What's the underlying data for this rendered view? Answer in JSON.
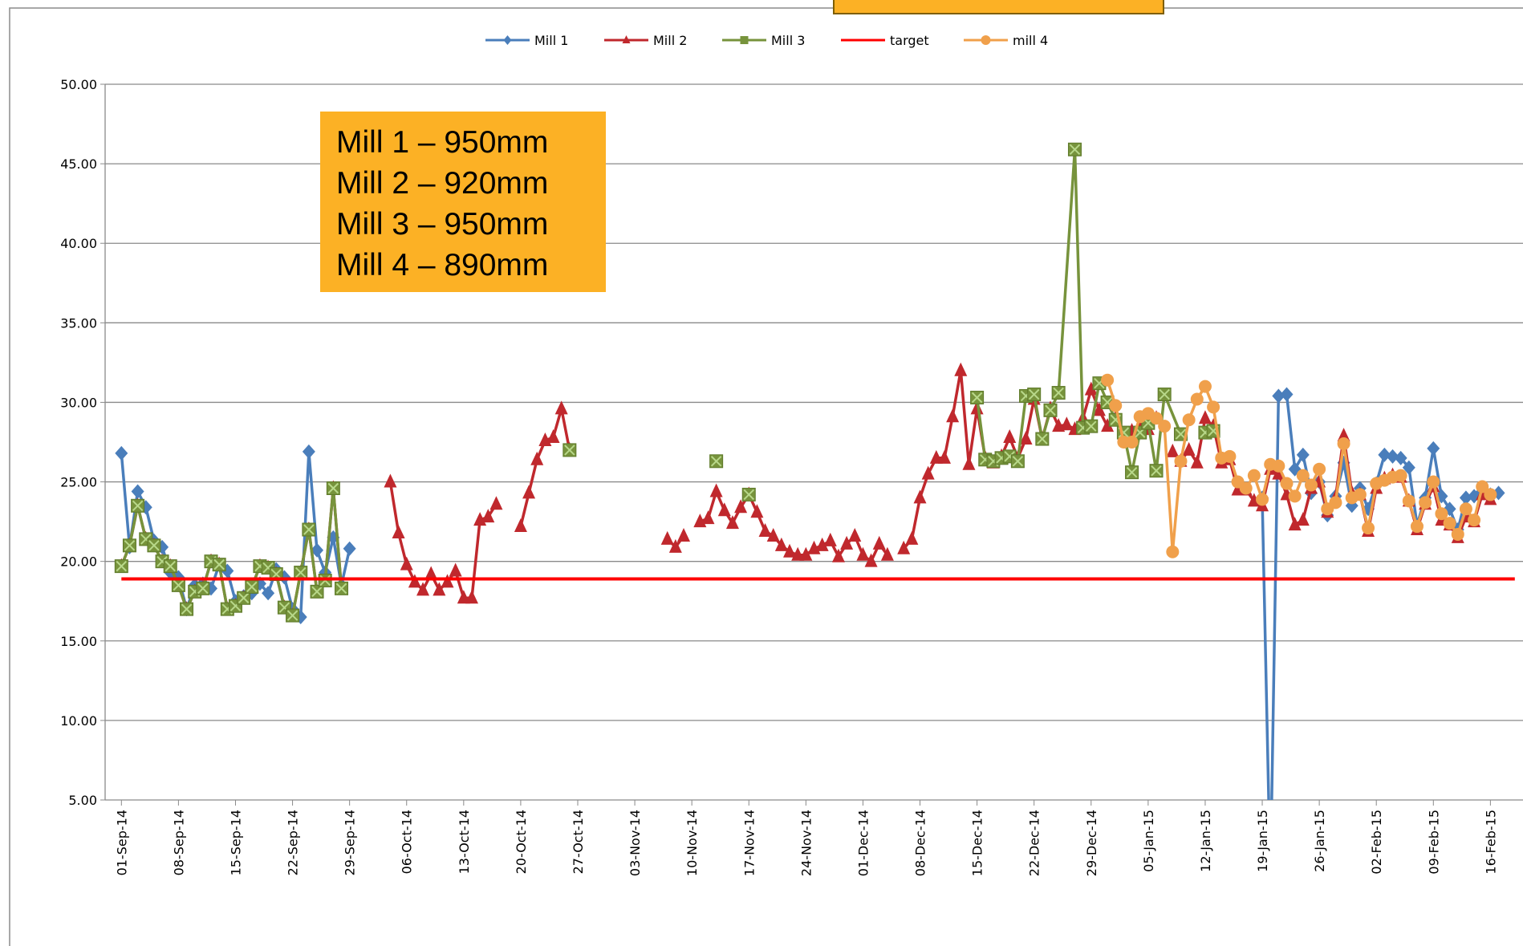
{
  "chart_data": {
    "type": "line",
    "annotation": [
      "Mill 1 – 950mm",
      "Mill 2 – 920mm",
      "Mill 3 – 950mm",
      "Mill 4 – 890mm"
    ],
    "xlim": [
      "2014-08-30",
      "2015-02-20"
    ],
    "xticks": [
      {
        "value": "2014-09-01",
        "label": "01-Sep-14"
      },
      {
        "value": "2014-09-08",
        "label": "08-Sep-14"
      },
      {
        "value": "2014-09-15",
        "label": "15-Sep-14"
      },
      {
        "value": "2014-09-22",
        "label": "22-Sep-14"
      },
      {
        "value": "2014-09-29",
        "label": "29-Sep-14"
      },
      {
        "value": "2014-10-06",
        "label": "06-Oct-14"
      },
      {
        "value": "2014-10-13",
        "label": "13-Oct-14"
      },
      {
        "value": "2014-10-20",
        "label": "20-Oct-14"
      },
      {
        "value": "2014-10-27",
        "label": "27-Oct-14"
      },
      {
        "value": "2014-11-03",
        "label": "03-Nov-14"
      },
      {
        "value": "2014-11-10",
        "label": "10-Nov-14"
      },
      {
        "value": "2014-11-17",
        "label": "17-Nov-14"
      },
      {
        "value": "2014-11-24",
        "label": "24-Nov-14"
      },
      {
        "value": "2014-12-01",
        "label": "01-Dec-14"
      },
      {
        "value": "2014-12-08",
        "label": "08-Dec-14"
      },
      {
        "value": "2014-12-15",
        "label": "15-Dec-14"
      },
      {
        "value": "2014-12-22",
        "label": "22-Dec-14"
      },
      {
        "value": "2014-12-29",
        "label": "29-Dec-14"
      },
      {
        "value": "2015-01-05",
        "label": "05-Jan-15"
      },
      {
        "value": "2015-01-12",
        "label": "12-Jan-15"
      },
      {
        "value": "2015-01-19",
        "label": "19-Jan-15"
      },
      {
        "value": "2015-01-26",
        "label": "26-Jan-15"
      },
      {
        "value": "2015-02-02",
        "label": "02-Feb-15"
      },
      {
        "value": "2015-02-09",
        "label": "09-Feb-15"
      },
      {
        "value": "2015-02-16",
        "label": "16-Feb-15"
      }
    ],
    "ylim": [
      5,
      50
    ],
    "yticks": [
      {
        "value": 5,
        "label": "5.00"
      },
      {
        "value": 10,
        "label": "10.00"
      },
      {
        "value": 15,
        "label": "15.00"
      },
      {
        "value": 20,
        "label": "20.00"
      },
      {
        "value": 25,
        "label": "25.00"
      },
      {
        "value": 30,
        "label": "30.00"
      },
      {
        "value": 35,
        "label": "35.00"
      },
      {
        "value": 40,
        "label": "40.00"
      },
      {
        "value": 45,
        "label": "45.00"
      },
      {
        "value": 50,
        "label": "50.00"
      }
    ],
    "grid": true,
    "legend": "top",
    "series": [
      {
        "name": "Mill 1",
        "color": "#4a7ebb",
        "marker": "diamond",
        "x": [
          "2014-09-01",
          "2014-09-02",
          "2014-09-03",
          "2014-09-04",
          "2014-09-05",
          "2014-09-06",
          "2014-09-07",
          "2014-09-08",
          "2014-09-09",
          "2014-09-10",
          "2014-09-11",
          "2014-09-12",
          "2014-09-13",
          "2014-09-14",
          "2014-09-15",
          "2014-09-16",
          "2014-09-17",
          "2014-09-18",
          "2014-09-19",
          "2014-09-20",
          "2014-09-21",
          "2014-09-22",
          "2014-09-23",
          "2014-09-24",
          "2014-09-25",
          "2014-09-26",
          "2014-09-27",
          "2014-09-28",
          "2014-09-29",
          "2014-10-01",
          "2015-01-19",
          "2015-01-20",
          "2015-01-21",
          "2015-01-22",
          "2015-01-23",
          "2015-01-24",
          "2015-01-25",
          "2015-01-26",
          "2015-01-27",
          "2015-01-28",
          "2015-01-29",
          "2015-01-30",
          "2015-01-31",
          "2015-02-01",
          "2015-02-02",
          "2015-02-03",
          "2015-02-04",
          "2015-02-05",
          "2015-02-06",
          "2015-02-07",
          "2015-02-08",
          "2015-02-09",
          "2015-02-10",
          "2015-02-11",
          "2015-02-12",
          "2015-02-13",
          "2015-02-14",
          "2015-02-15",
          "2015-02-16",
          "2015-02-17"
        ],
        "values": [
          26.8,
          20.9,
          24.4,
          23.4,
          21.3,
          20.9,
          19.3,
          19.0,
          17.0,
          18.5,
          18.6,
          18.3,
          19.8,
          19.4,
          17.5,
          17.8,
          18.0,
          18.6,
          18.0,
          19.5,
          19.0,
          17.0,
          16.5,
          26.9,
          20.7,
          19.3,
          21.5,
          18.5,
          20.8,
          null,
          24.0,
          0,
          30.4,
          30.5,
          25.8,
          26.7,
          24.3,
          25.0,
          22.9,
          24.1,
          26.2,
          23.5,
          24.6,
          23.3,
          24.9,
          26.7,
          26.6,
          26.5,
          25.9,
          22.3,
          24.0,
          27.1,
          24.1,
          23.3,
          22.0,
          24.0,
          24.1,
          24.4,
          24.2,
          24.3
        ]
      },
      {
        "name": "Mill 2",
        "color": "#c0282d",
        "marker": "triangle",
        "x": [
          "2014-09-01",
          "2014-09-02",
          "2014-09-03",
          "2014-09-04",
          "2014-09-05",
          "2014-09-06",
          "2014-09-07",
          "2014-09-08",
          "2014-09-09",
          "2014-09-10",
          "2014-09-11",
          "2014-09-12",
          "2014-09-13",
          "2014-09-14",
          "2014-09-15",
          "2014-09-16",
          "2014-09-17",
          "2014-09-18",
          "2014-09-19",
          "2014-09-20",
          "2014-09-21",
          "2014-09-22",
          "2014-09-23",
          "2014-09-24",
          "2014-09-25",
          "2014-09-26",
          "2014-09-27",
          "2014-09-28",
          "2014-10-01",
          "2014-10-04",
          "2014-10-05",
          "2014-10-06",
          "2014-10-07",
          "2014-10-08",
          "2014-10-09",
          "2014-10-10",
          "2014-10-11",
          "2014-10-12",
          "2014-10-13",
          "2014-10-14",
          "2014-10-15",
          "2014-10-16",
          "2014-10-17",
          "2014-10-18",
          "2014-10-20",
          "2014-10-21",
          "2014-10-22",
          "2014-10-23",
          "2014-10-24",
          "2014-10-25",
          "2014-10-26",
          "2014-10-30",
          "2014-11-07",
          "2014-11-08",
          "2014-11-09",
          "2014-11-10",
          "2014-11-11",
          "2014-11-12",
          "2014-11-13",
          "2014-11-14",
          "2014-11-15",
          "2014-11-16",
          "2014-11-17",
          "2014-11-18",
          "2014-11-19",
          "2014-11-20",
          "2014-11-21",
          "2014-11-22",
          "2014-11-23",
          "2014-11-24",
          "2014-11-25",
          "2014-11-26",
          "2014-11-27",
          "2014-11-28",
          "2014-11-29",
          "2014-11-30",
          "2014-12-01",
          "2014-12-02",
          "2014-12-03",
          "2014-12-04",
          "2014-12-05",
          "2014-12-06",
          "2014-12-07",
          "2014-12-08",
          "2014-12-09",
          "2014-12-10",
          "2014-12-11",
          "2014-12-12",
          "2014-12-13",
          "2014-12-14",
          "2014-12-15",
          "2014-12-16",
          "2014-12-17",
          "2014-12-18",
          "2014-12-19",
          "2014-12-20",
          "2014-12-21",
          "2014-12-22",
          "2014-12-23",
          "2014-12-24",
          "2014-12-25",
          "2014-12-26",
          "2014-12-27",
          "2014-12-28",
          "2014-12-29",
          "2014-12-30",
          "2014-12-31",
          "2015-01-01",
          "2015-01-02",
          "2015-01-03",
          "2015-01-04",
          "2015-01-05",
          "2015-01-06",
          "2015-01-07",
          "2015-01-08",
          "2015-01-09",
          "2015-01-10",
          "2015-01-11",
          "2015-01-12",
          "2015-01-13",
          "2015-01-14",
          "2015-01-15",
          "2015-01-16",
          "2015-01-17",
          "2015-01-18",
          "2015-01-19",
          "2015-01-20",
          "2015-01-21",
          "2015-01-22",
          "2015-01-23",
          "2015-01-24",
          "2015-01-25",
          "2015-01-26",
          "2015-01-27",
          "2015-01-28",
          "2015-01-29",
          "2015-01-30",
          "2015-01-31",
          "2015-02-01",
          "2015-02-02",
          "2015-02-03",
          "2015-02-04",
          "2015-02-05",
          "2015-02-06",
          "2015-02-07",
          "2015-02-08",
          "2015-02-09",
          "2015-02-10",
          "2015-02-11",
          "2015-02-12",
          "2015-02-13",
          "2015-02-14",
          "2015-02-15",
          "2015-02-16"
        ],
        "values": [
          19.7,
          21.0,
          23.5,
          21.4,
          21.0,
          20.0,
          19.7,
          18.5,
          17.0,
          18.1,
          18.3,
          20.0,
          19.8,
          17.0,
          17.2,
          17.7,
          18.4,
          19.7,
          19.6,
          19.2,
          17.1,
          16.6,
          19.3,
          22.0,
          18.1,
          18.8,
          24.6,
          18.3,
          null,
          25.0,
          21.8,
          19.8,
          18.7,
          18.2,
          19.2,
          18.2,
          18.7,
          19.4,
          17.7,
          17.7,
          22.6,
          22.8,
          23.6,
          null,
          22.2,
          24.3,
          26.4,
          27.6,
          27.8,
          29.6,
          27.0,
          null,
          21.4,
          20.9,
          21.6,
          null,
          22.5,
          22.7,
          24.4,
          23.2,
          22.4,
          23.4,
          24.2,
          23.1,
          21.9,
          21.6,
          21.0,
          20.6,
          20.4,
          20.4,
          20.8,
          21.0,
          21.3,
          20.3,
          21.1,
          21.6,
          20.4,
          20.0,
          21.1,
          20.4,
          null,
          20.8,
          21.4,
          24.0,
          25.5,
          26.5,
          26.5,
          29.1,
          32.0,
          26.1,
          29.6,
          26.5,
          26.2,
          26.6,
          27.8,
          26.5,
          27.7,
          30.2,
          27.7,
          29.6,
          28.5,
          28.6,
          28.3,
          29.0,
          30.8,
          29.5,
          28.5,
          29.0,
          27.8,
          28.2,
          28.5,
          28.3,
          29.0,
          null,
          26.9,
          26.3,
          27.0,
          26.2,
          29.0,
          28.5,
          26.2,
          26.4,
          24.5,
          24.5,
          23.8,
          23.5,
          25.8,
          25.5,
          24.2,
          22.3,
          22.6,
          24.6,
          25.0,
          23.1,
          24.0,
          27.9,
          24.3,
          24.2,
          21.9,
          24.6,
          25.2,
          25.4,
          25.3,
          23.8,
          22.0,
          23.6,
          24.7,
          22.6,
          22.3,
          21.5,
          22.8,
          22.5,
          24.2,
          23.9
        ]
      },
      {
        "name": "Mill 3",
        "color": "#77933c",
        "marker": "square",
        "x": [
          "2014-09-01",
          "2014-09-02",
          "2014-09-03",
          "2014-09-04",
          "2014-09-05",
          "2014-09-06",
          "2014-09-07",
          "2014-09-08",
          "2014-09-09",
          "2014-09-10",
          "2014-09-11",
          "2014-09-12",
          "2014-09-13",
          "2014-09-14",
          "2014-09-15",
          "2014-09-16",
          "2014-09-17",
          "2014-09-18",
          "2014-09-19",
          "2014-09-20",
          "2014-09-21",
          "2014-09-22",
          "2014-09-23",
          "2014-09-24",
          "2014-09-25",
          "2014-09-26",
          "2014-09-27",
          "2014-09-28",
          "2014-10-01",
          "2014-10-26",
          "2014-11-01",
          "2014-11-13",
          "2014-11-14",
          "2014-11-17",
          "2014-11-18",
          "2014-12-15",
          "2014-12-16",
          "2014-12-17",
          "2014-12-18",
          "2014-12-19",
          "2014-12-20",
          "2014-12-21",
          "2014-12-22",
          "2014-12-23",
          "2014-12-24",
          "2014-12-25",
          "2014-12-27",
          "2014-12-28",
          "2014-12-29",
          "2014-12-30",
          "2014-12-31",
          "2015-01-01",
          "2015-01-02",
          "2015-01-03",
          "2015-01-04",
          "2015-01-05",
          "2015-01-06",
          "2015-01-07",
          "2015-01-09",
          "2015-01-10",
          "2015-01-12",
          "2015-01-13"
        ],
        "values": [
          19.7,
          21.0,
          23.5,
          21.4,
          21.0,
          20.0,
          19.7,
          18.5,
          17.0,
          18.1,
          18.3,
          20.0,
          19.8,
          17.0,
          17.2,
          17.7,
          18.4,
          19.7,
          19.6,
          19.2,
          17.1,
          16.6,
          19.3,
          22.0,
          18.1,
          18.8,
          24.6,
          18.3,
          null,
          27.0,
          null,
          26.3,
          null,
          24.2,
          null,
          30.3,
          26.4,
          26.3,
          26.5,
          26.6,
          26.3,
          30.4,
          30.5,
          27.7,
          29.5,
          30.6,
          45.9,
          28.4,
          28.5,
          31.2,
          30.0,
          28.9,
          28.1,
          25.6,
          28.1,
          28.7,
          25.7,
          30.5,
          28.0,
          null,
          28.1,
          28.2
        ]
      },
      {
        "name": "target",
        "color": "#ff0000",
        "marker": "none",
        "x": [
          "2014-09-01",
          "2015-02-19"
        ],
        "values": [
          18.9,
          18.9
        ]
      },
      {
        "name": "mill 4",
        "color": "#f0a04b",
        "marker": "circle",
        "x": [
          "2014-12-31",
          "2015-01-01",
          "2015-01-02",
          "2015-01-03",
          "2015-01-04",
          "2015-01-05",
          "2015-01-06",
          "2015-01-07",
          "2015-01-08",
          "2015-01-09",
          "2015-01-10",
          "2015-01-11",
          "2015-01-12",
          "2015-01-13",
          "2015-01-14",
          "2015-01-15",
          "2015-01-16",
          "2015-01-17",
          "2015-01-18",
          "2015-01-19",
          "2015-01-20",
          "2015-01-21",
          "2015-01-22",
          "2015-01-23",
          "2015-01-24",
          "2015-01-25",
          "2015-01-26",
          "2015-01-27",
          "2015-01-28",
          "2015-01-29",
          "2015-01-30",
          "2015-01-31",
          "2015-02-01",
          "2015-02-02",
          "2015-02-03",
          "2015-02-04",
          "2015-02-05",
          "2015-02-06",
          "2015-02-07",
          "2015-02-08",
          "2015-02-09",
          "2015-02-10",
          "2015-02-11",
          "2015-02-12",
          "2015-02-13",
          "2015-02-14",
          "2015-02-15",
          "2015-02-16"
        ],
        "values": [
          31.4,
          29.8,
          27.5,
          27.5,
          29.1,
          29.3,
          29.0,
          28.5,
          20.6,
          26.3,
          28.9,
          30.2,
          31.0,
          29.7,
          26.5,
          26.6,
          25.0,
          24.6,
          25.4,
          23.9,
          26.1,
          26.0,
          24.9,
          24.1,
          25.4,
          24.8,
          25.8,
          23.3,
          23.7,
          27.4,
          24.0,
          24.2,
          22.1,
          24.9,
          25.1,
          25.3,
          25.4,
          23.8,
          22.2,
          23.7,
          25.0,
          23.0,
          22.4,
          21.7,
          23.3,
          22.6,
          24.7,
          24.2
        ]
      }
    ]
  }
}
